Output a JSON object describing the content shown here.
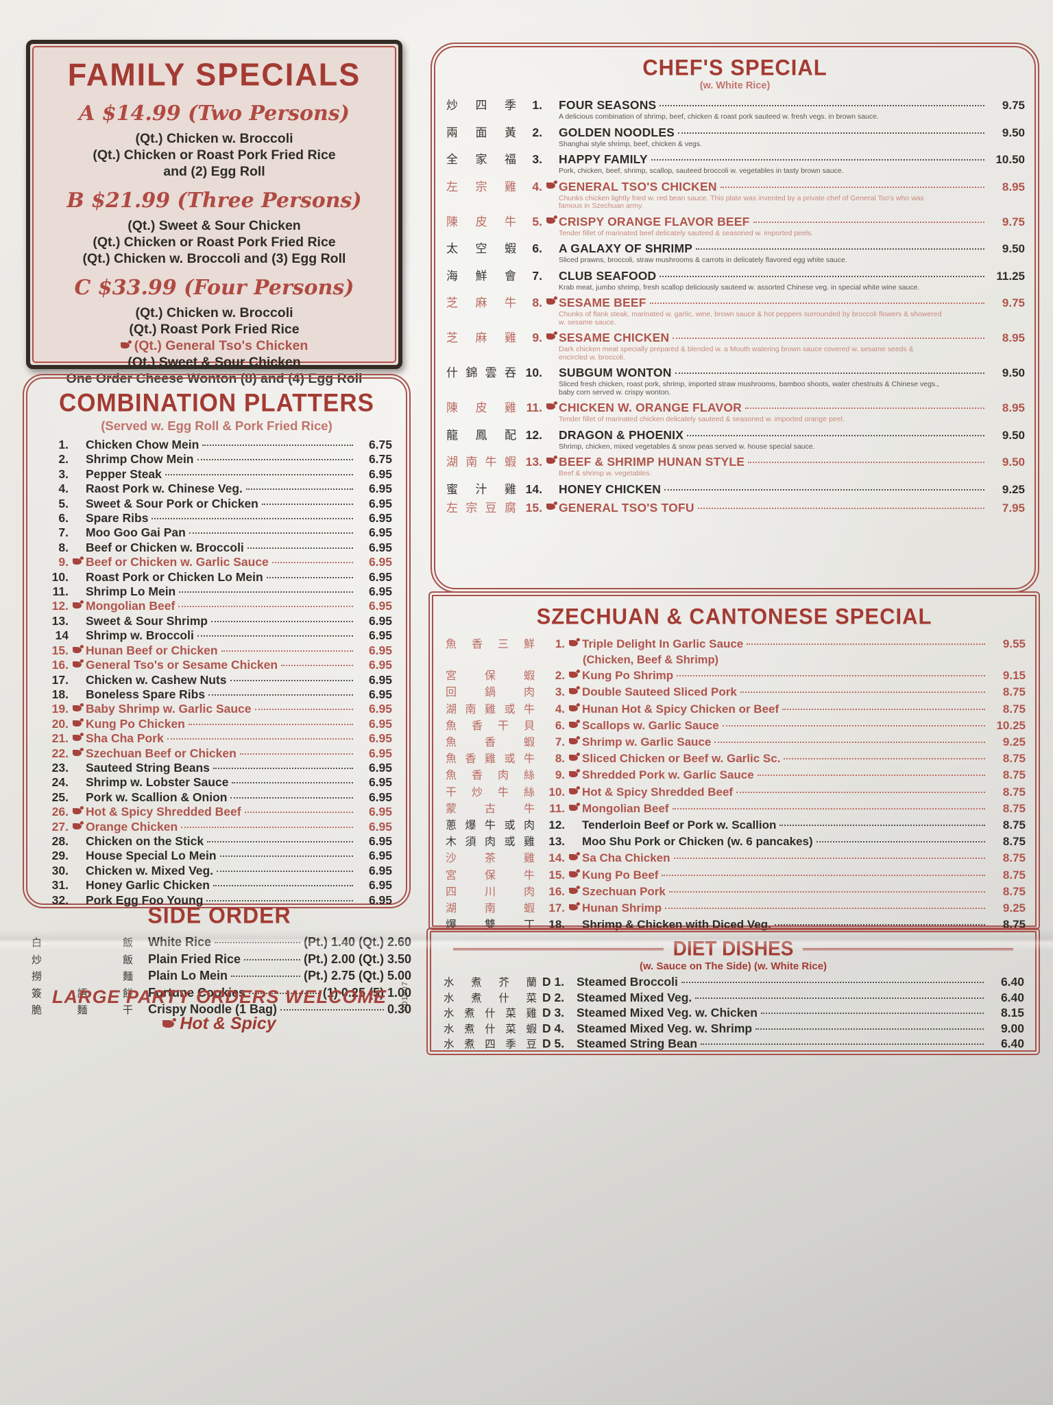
{
  "page": {
    "print_code": "P01907"
  },
  "family_specials": {
    "title": "FAMILY SPECIALS",
    "tiers": [
      {
        "label": "A $14.99 (Two Persons)",
        "lines": [
          {
            "text": "(Qt.) Chicken w. Broccoli",
            "red": false,
            "spicy": false
          },
          {
            "text": "(Qt.) Chicken or Roast Pork Fried Rice",
            "red": false,
            "spicy": false
          },
          {
            "text": "and (2) Egg Roll",
            "red": false,
            "spicy": false
          }
        ]
      },
      {
        "label": "B $21.99 (Three Persons)",
        "lines": [
          {
            "text": "(Qt.) Sweet & Sour Chicken",
            "red": false,
            "spicy": false
          },
          {
            "text": "(Qt.) Chicken or Roast Pork Fried Rice",
            "red": false,
            "spicy": false
          },
          {
            "text": "(Qt.) Chicken w. Broccoli and (3) Egg Roll",
            "red": false,
            "spicy": false
          }
        ]
      },
      {
        "label": "C $33.99 (Four Persons)",
        "lines": [
          {
            "text": "(Qt.) Chicken w. Broccoli",
            "red": false,
            "spicy": false
          },
          {
            "text": "(Qt.) Roast Pork Fried Rice",
            "red": false,
            "spicy": false
          },
          {
            "text": "(Qt.) General Tso's Chicken",
            "red": true,
            "spicy": true
          },
          {
            "text": "(Qt.) Sweet & Sour Chicken",
            "red": false,
            "spicy": false
          },
          {
            "text": "One Order Cheese Wonton (8) and (4) Egg Roll",
            "red": false,
            "spicy": false
          }
        ]
      }
    ]
  },
  "combination_platters": {
    "title": "COMBINATION PLATTERS",
    "subtitle": "(Served w. Egg Roll & Pork Fried Rice)",
    "items": [
      {
        "num": "1.",
        "name": "Chicken Chow Mein",
        "price": "6.75",
        "spicy": false
      },
      {
        "num": "2.",
        "name": "Shrimp Chow Mein",
        "price": "6.75",
        "spicy": false
      },
      {
        "num": "3.",
        "name": "Pepper Steak",
        "price": "6.95",
        "spicy": false
      },
      {
        "num": "4.",
        "name": "Raost Pork w. Chinese Veg.",
        "price": "6.95",
        "spicy": false
      },
      {
        "num": "5.",
        "name": "Sweet & Sour Pork or Chicken",
        "price": "6.95",
        "spicy": false
      },
      {
        "num": "6.",
        "name": "Spare Ribs",
        "price": "6.95",
        "spicy": false
      },
      {
        "num": "7.",
        "name": "Moo Goo Gai Pan",
        "price": "6.95",
        "spicy": false
      },
      {
        "num": "8.",
        "name": "Beef or Chicken w. Broccoli",
        "price": "6.95",
        "spicy": false
      },
      {
        "num": "9.",
        "name": "Beef or Chicken w. Garlic Sauce",
        "price": "6.95",
        "spicy": true
      },
      {
        "num": "10.",
        "name": "Roast Pork or Chicken Lo Mein",
        "price": "6.95",
        "spicy": false
      },
      {
        "num": "11.",
        "name": "Shrimp Lo Mein",
        "price": "6.95",
        "spicy": false
      },
      {
        "num": "12.",
        "name": "Mongolian Beef",
        "price": "6.95",
        "spicy": true
      },
      {
        "num": "13.",
        "name": "Sweet & Sour Shrimp",
        "price": "6.95",
        "spicy": false
      },
      {
        "num": "14",
        "name": "Shrimp w. Broccoli",
        "price": "6.95",
        "spicy": false
      },
      {
        "num": "15.",
        "name": "Hunan Beef or Chicken",
        "price": "6.95",
        "spicy": true
      },
      {
        "num": "16.",
        "name": "General Tso's or Sesame Chicken",
        "price": "6.95",
        "spicy": true
      },
      {
        "num": "17.",
        "name": "Chicken w. Cashew Nuts",
        "price": "6.95",
        "spicy": false
      },
      {
        "num": "18.",
        "name": "Boneless Spare Ribs",
        "price": "6.95",
        "spicy": false
      },
      {
        "num": "19.",
        "name": "Baby Shrimp w. Garlic Sauce",
        "price": "6.95",
        "spicy": true
      },
      {
        "num": "20.",
        "name": "Kung Po Chicken",
        "price": "6.95",
        "spicy": true
      },
      {
        "num": "21.",
        "name": "Sha Cha Pork",
        "price": "6.95",
        "spicy": true
      },
      {
        "num": "22.",
        "name": "Szechuan Beef or Chicken",
        "price": "6.95",
        "spicy": true
      },
      {
        "num": "23.",
        "name": "Sauteed String Beans",
        "price": "6.95",
        "spicy": false
      },
      {
        "num": "24.",
        "name": "Shrimp w. Lobster Sauce",
        "price": "6.95",
        "spicy": false
      },
      {
        "num": "25.",
        "name": "Pork w. Scallion & Onion",
        "price": "6.95",
        "spicy": false
      },
      {
        "num": "26.",
        "name": "Hot & Spicy Shredded Beef",
        "price": "6.95",
        "spicy": true
      },
      {
        "num": "27.",
        "name": "Orange Chicken",
        "price": "6.95",
        "spicy": true
      },
      {
        "num": "28.",
        "name": "Chicken on the Stick",
        "price": "6.95",
        "spicy": false
      },
      {
        "num": "29.",
        "name": "House Special Lo Mein",
        "price": "6.95",
        "spicy": false
      },
      {
        "num": "30.",
        "name": "Chicken w. Mixed Veg.",
        "price": "6.95",
        "spicy": false
      },
      {
        "num": "31.",
        "name": "Honey Garlic Chicken",
        "price": "6.95",
        "spicy": false
      },
      {
        "num": "32.",
        "name": "Pork Egg Foo Young",
        "price": "6.95",
        "spicy": false
      }
    ]
  },
  "side_order": {
    "title": "SIDE ORDER",
    "items": [
      {
        "cn": "白飯",
        "name": "White Rice",
        "price": "(Pt.) 1.40 (Qt.) 2.60"
      },
      {
        "cn": "炒飯",
        "name": "Plain Fried Rice",
        "price": "(Pt.) 2.00 (Qt.) 3.50"
      },
      {
        "cn": "撈麵",
        "name": "Plain Lo Mein",
        "price": "(Pt.) 2.75 (Qt.) 5.00"
      },
      {
        "cn": "簽語餅",
        "name": "Fortune Cookies",
        "price": "(1) 0.25 (5) 1.00"
      },
      {
        "cn": "脆麵干",
        "name": "Crispy Noodle (1 Bag)",
        "price": "0.30"
      }
    ]
  },
  "footer": {
    "line1": "LARGE PARTY ORDERS WELCOME",
    "line2": "Hot & Spicy"
  },
  "chefs_special": {
    "title": "CHEF'S SPECIAL",
    "subtitle": "(w. White Rice)",
    "items": [
      {
        "cn": "炒四季",
        "num": "1.",
        "name": "FOUR SEASONS",
        "price": "9.75",
        "spicy": false,
        "desc": "A delicious combination of shrimp, beef, chicken & roast pork sauteed w. fresh vegs. in brown sauce."
      },
      {
        "cn": "兩面黃",
        "num": "2.",
        "name": "GOLDEN NOODLES",
        "price": "9.50",
        "spicy": false,
        "desc": "Shanghai style shrimp, beef, chicken & vegs."
      },
      {
        "cn": "全家福",
        "num": "3.",
        "name": "HAPPY FAMILY",
        "price": "10.50",
        "spicy": false,
        "desc": "Pork, chicken, beef, shrimp, scallop, sauteed broccoli w. vegetables in tasty brown sauce."
      },
      {
        "cn": "左宗雞",
        "num": "4.",
        "name": "GENERAL TSO'S CHICKEN",
        "price": "8.95",
        "spicy": true,
        "desc": "Chunks chicken lightly fried w. red bean sauce. This plate was invented by a private chef of General Tso's who was famous in Szechuan army."
      },
      {
        "cn": "陳皮牛",
        "num": "5.",
        "name": "CRISPY ORANGE FLAVOR BEEF",
        "price": "9.75",
        "spicy": true,
        "desc": "Tender fillet of marinated beef delicately sauteed & seasoned w. imported peels."
      },
      {
        "cn": "太空蝦",
        "num": "6.",
        "name": "A GALAXY OF SHRIMP",
        "price": "9.50",
        "spicy": false,
        "desc": "Sliced prawns, broccoli, straw mushrooms & carrots in delicately flavored egg white sauce."
      },
      {
        "cn": "海鮮會",
        "num": "7.",
        "name": "CLUB SEAFOOD",
        "price": "11.25",
        "spicy": false,
        "desc": "Krab meat, jumbo shrimp, fresh scallop deliciously sauteed w. assorted Chinese veg. in special white wine sauce."
      },
      {
        "cn": "芝麻牛",
        "num": "8.",
        "name": "SESAME BEEF",
        "price": "9.75",
        "spicy": true,
        "desc": "Chunks of flank steak, marinated w. garlic, wine, brown sauce & hot peppers surrounded by broccoli flowers & showered w. sesame sauce."
      },
      {
        "cn": "芝麻雞",
        "num": "9.",
        "name": "SESAME CHICKEN",
        "price": "8.95",
        "spicy": true,
        "desc": "Dark chicken meat specially prepared & blended w. a Mouth watering brown sauce covered w. sesame seeds & encircled w. broccoli."
      },
      {
        "cn": "什錦雲吞",
        "num": "10.",
        "name": "SUBGUM WONTON",
        "price": "9.50",
        "spicy": false,
        "desc": "Sliced fresh chicken, roast pork, shrimp, imported straw mushrooms, bamboo shoots, water chestnuts & Chinese vegs., baby corn served w. crispy wonton."
      },
      {
        "cn": "陳皮雞",
        "num": "11.",
        "name": "CHICKEN W. ORANGE FLAVOR",
        "price": "8.95",
        "spicy": true,
        "desc": "Tender fillet of marinated chicken delicately sauteed & seasoned w. imported orange peel."
      },
      {
        "cn": "龍鳳配",
        "num": "12.",
        "name": "DRAGON & PHOENIX",
        "price": "9.50",
        "spicy": false,
        "desc": "Shrimp, chicken, mixed vegetables & snow peas served w. house special sauce."
      },
      {
        "cn": "湖南牛蝦",
        "num": "13.",
        "name": "BEEF & SHRIMP HUNAN STYLE",
        "price": "9.50",
        "spicy": true,
        "desc": "Beef & shrimp w. vegetables."
      },
      {
        "cn": "蜜汁雞",
        "num": "14.",
        "name": "HONEY CHICKEN",
        "price": "9.25",
        "spicy": false
      },
      {
        "cn": "左宗豆腐",
        "num": "15.",
        "name": "GENERAL TSO'S TOFU",
        "price": "7.95",
        "spicy": true
      }
    ]
  },
  "szechuan_cantonese": {
    "title": "SZECHUAN & CANTONESE SPECIAL",
    "items": [
      {
        "cn": "魚香三鮮",
        "num": "1.",
        "name": "Triple Delight In Garlic Sauce",
        "price": "9.55",
        "spicy": true,
        "note": "(Chicken, Beef & Shrimp)"
      },
      {
        "cn": "宮保蝦",
        "num": "2.",
        "name": "Kung Po Shrimp",
        "price": "9.15",
        "spicy": true
      },
      {
        "cn": "回鍋肉",
        "num": "3.",
        "name": "Double Sauteed Sliced Pork",
        "price": "8.75",
        "spicy": true
      },
      {
        "cn": "湖南雞或牛",
        "num": "4.",
        "name": "Hunan Hot & Spicy Chicken or Beef",
        "price": "8.75",
        "spicy": true
      },
      {
        "cn": "魚香干貝",
        "num": "6.",
        "name": "Scallops w. Garlic Sauce",
        "price": "10.25",
        "spicy": true
      },
      {
        "cn": "魚香蝦",
        "num": "7.",
        "name": "Shrimp w. Garlic Sauce",
        "price": "9.25",
        "spicy": true
      },
      {
        "cn": "魚香雞或牛",
        "num": "8.",
        "name": "Sliced Chicken or Beef w. Garlic Sc.",
        "price": "8.75",
        "spicy": true
      },
      {
        "cn": "魚香肉絲",
        "num": "9.",
        "name": "Shredded Pork w. Garlic Sauce",
        "price": "8.75",
        "spicy": true
      },
      {
        "cn": "干炒牛絲",
        "num": "10.",
        "name": "Hot & Spicy Shredded Beef",
        "price": "8.75",
        "spicy": true
      },
      {
        "cn": "蒙古牛",
        "num": "11.",
        "name": "Mongolian Beef",
        "price": "8.75",
        "spicy": true
      },
      {
        "cn": "蔥爆牛或肉",
        "num": "12.",
        "name": "Tenderloin Beef or Pork w. Scallion",
        "price": "8.75",
        "spicy": false
      },
      {
        "cn": "木須肉或雞",
        "num": "13.",
        "name": "Moo Shu Pork or Chicken (w. 6 pancakes)",
        "price": "8.75",
        "spicy": false
      },
      {
        "cn": "沙茶雞",
        "num": "14.",
        "name": "Sa Cha Chicken",
        "price": "8.75",
        "spicy": true
      },
      {
        "cn": "宮保牛",
        "num": "15.",
        "name": "Kung Po Beef",
        "price": "8.75",
        "spicy": true
      },
      {
        "cn": "四川肉",
        "num": "16.",
        "name": "Szechuan Pork",
        "price": "8.75",
        "spicy": true
      },
      {
        "cn": "湖南蝦",
        "num": "17.",
        "name": "Hunan Shrimp",
        "price": "9.25",
        "spicy": true
      },
      {
        "cn": "爆雙丁",
        "num": "18.",
        "name": "Shrimp & Chicken with Diced Veg.",
        "price": "8.75",
        "spicy": false
      }
    ]
  },
  "diet_dishes": {
    "title": "DIET DISHES",
    "subtitle": "(w. Sauce on The Side) (w. White Rice)",
    "items": [
      {
        "cn": "水煮芥蘭",
        "num": "D 1.",
        "name": "Steamed Broccoli",
        "price": "6.40"
      },
      {
        "cn": "水煮什菜",
        "num": "D 2.",
        "name": "Steamed Mixed Veg.",
        "price": "6.40"
      },
      {
        "cn": "水煮什菜雞",
        "num": "D 3.",
        "name": "Steamed Mixed Veg. w. Chicken",
        "price": "8.15"
      },
      {
        "cn": "水煮什菜蝦",
        "num": "D 4.",
        "name": "Steamed Mixed Veg. w. Shrimp",
        "price": "9.00"
      },
      {
        "cn": "水煮四季豆",
        "num": "D 5.",
        "name": "Steamed String Bean",
        "price": "6.40"
      }
    ]
  }
}
